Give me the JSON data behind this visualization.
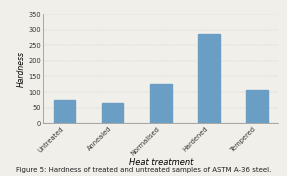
{
  "categories": [
    "Untreated",
    "Annealed",
    "Normalised",
    "Hardened",
    "Tempered"
  ],
  "values": [
    75,
    65,
    125,
    285,
    105
  ],
  "bar_color": "#6a9ec5",
  "title": "",
  "xlabel": "Heat treatment",
  "ylabel": "Hardness",
  "ylim": [
    0,
    350
  ],
  "yticks": [
    0,
    50,
    100,
    150,
    200,
    250,
    300,
    350
  ],
  "caption": "Figure 5: Hardness of treated and untreated samples of ASTM A-36 steel.",
  "background_color": "#f0efea",
  "plot_bg_color": "#f0efea",
  "bar_width": 0.45,
  "xlabel_fontsize": 6.0,
  "ylabel_fontsize": 5.5,
  "tick_fontsize": 4.8,
  "caption_fontsize": 5.0
}
